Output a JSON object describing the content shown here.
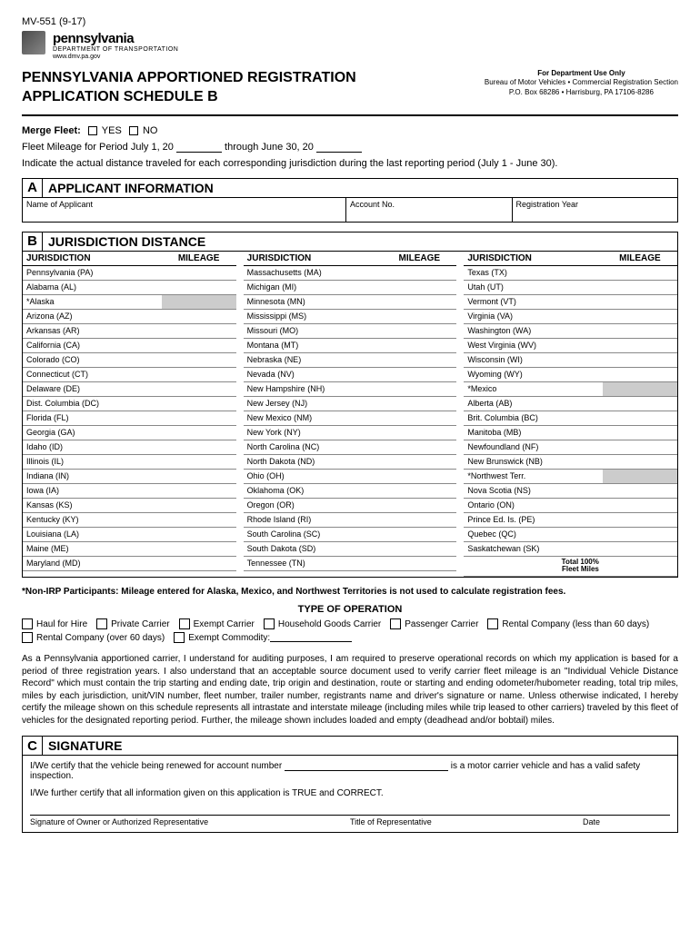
{
  "form_id": "MV-551 (9-17)",
  "brand": {
    "name": "pennsylvania",
    "dept": "DEPARTMENT OF TRANSPORTATION",
    "url": "www.dmv.pa.gov"
  },
  "title_line1": "PENNSYLVANIA APPORTIONED REGISTRATION",
  "title_line2": "APPLICATION SCHEDULE B",
  "dept_box": {
    "line1": "For Department Use Only",
    "line2": "Bureau of Motor Vehicles • Commercial Registration Section",
    "line3": "P.O. Box 68286 • Harrisburg, PA 17106-8286"
  },
  "merge": {
    "label": "Merge Fleet:",
    "yes": "YES",
    "no": "NO"
  },
  "fleet_period": {
    "pre": "Fleet Mileage for Period July 1, 20",
    "mid": "through June 30, 20"
  },
  "indicate": "Indicate the actual distance traveled for each corresponding jurisdiction during the last reporting period (July 1 - June 30).",
  "sectA": {
    "letter": "A",
    "title": "APPLICANT INFORMATION",
    "c1": "Name of Applicant",
    "c2": "Account No.",
    "c3": "Registration Year"
  },
  "sectB": {
    "letter": "B",
    "title": "JURISDICTION DISTANCE",
    "hJ": "JURISDICTION",
    "hM": "MILEAGE"
  },
  "col1": [
    "Pennsylvania (PA)",
    "Alabama (AL)",
    "*Alaska",
    "Arizona (AZ)",
    "Arkansas (AR)",
    "California (CA)",
    "Colorado (CO)",
    "Connecticut (CT)",
    "Delaware (DE)",
    "Dist. Columbia (DC)",
    "Florida (FL)",
    "Georgia (GA)",
    "Idaho (ID)",
    "Illinois (IL)",
    "Indiana (IN)",
    "Iowa (IA)",
    "Kansas (KS)",
    "Kentucky (KY)",
    "Louisiana (LA)",
    "Maine (ME)",
    "Maryland (MD)"
  ],
  "col1Gray": [
    2
  ],
  "col2": [
    "Massachusetts (MA)",
    "Michigan (MI)",
    "Minnesota (MN)",
    "Mississippi (MS)",
    "Missouri (MO)",
    "Montana (MT)",
    "Nebraska (NE)",
    "Nevada (NV)",
    "New Hampshire (NH)",
    "New Jersey (NJ)",
    "New Mexico (NM)",
    "New York (NY)",
    "North Carolina (NC)",
    "North Dakota (ND)",
    "Ohio (OH)",
    "Oklahoma (OK)",
    "Oregon (OR)",
    "Rhode Island (RI)",
    "South Carolina (SC)",
    "South Dakota (SD)",
    "Tennessee (TN)"
  ],
  "col2Gray": [],
  "col3": [
    "Texas (TX)",
    "Utah (UT)",
    "Vermont (VT)",
    "Virginia (VA)",
    "Washington (WA)",
    "West Virginia (WV)",
    "Wisconsin (WI)",
    "Wyoming (WY)",
    "*Mexico",
    "Alberta (AB)",
    "Brit. Columbia (BC)",
    "Manitoba (MB)",
    "Newfoundland (NF)",
    "New Brunswick (NB)",
    "*Northwest Terr.",
    "Nova Scotia (NS)",
    "Ontario (ON)",
    "Prince Ed. Is. (PE)",
    "Quebec (QC)",
    "Saskatchewan (SK)"
  ],
  "col3Gray": [
    8,
    14
  ],
  "total_label": "Total 100%\nFleet Miles",
  "note": "*Non-IRP Participants: Mileage entered for Alaska, Mexico, and Northwest Territories is not used to calculate registration fees.",
  "type_op_title": "TYPE OF OPERATION",
  "type_ops": [
    "Haul for Hire",
    "Private Carrier",
    "Exempt Carrier",
    "Household Goods Carrier",
    "Passenger Carrier",
    "Rental Company (less than 60 days)",
    "Rental Company (over 60 days)",
    "Exempt Commodity:"
  ],
  "para": "As a Pennsylvania apportioned carrier, I understand for auditing purposes, I am required to preserve operational records on which my application is based for a period of three registration years. I also understand that an acceptable source document used to verify carrier fleet mileage is an \"Individual Vehicle Distance Record\" which must contain the trip starting and ending date, trip origin and destination, route or starting and ending odometer/hubometer reading, total trip miles, miles by each jurisdiction, unit/VIN number, fleet number, trailer number, registrants name and driver's signature or name. Unless otherwise indicated, I hereby certify the mileage shown on this schedule represents all intrastate and interstate mileage (including miles while trip leased to other carriers) traveled by this fleet of vehicles for the designated reporting period. Further, the mileage shown includes loaded and empty (deadhead and/or bobtail) miles.",
  "sectC": {
    "letter": "C",
    "title": "SIGNATURE"
  },
  "sig": {
    "cert1a": "I/We certify that the vehicle being renewed for account number",
    "cert1b": "is a motor carrier vehicle and has a valid safety inspection.",
    "cert2": "I/We further certify that all information given on this application is TRUE and CORRECT.",
    "l1": "Signature of Owner or Authorized Representative",
    "l2": "Title of Representative",
    "l3": "Date"
  }
}
